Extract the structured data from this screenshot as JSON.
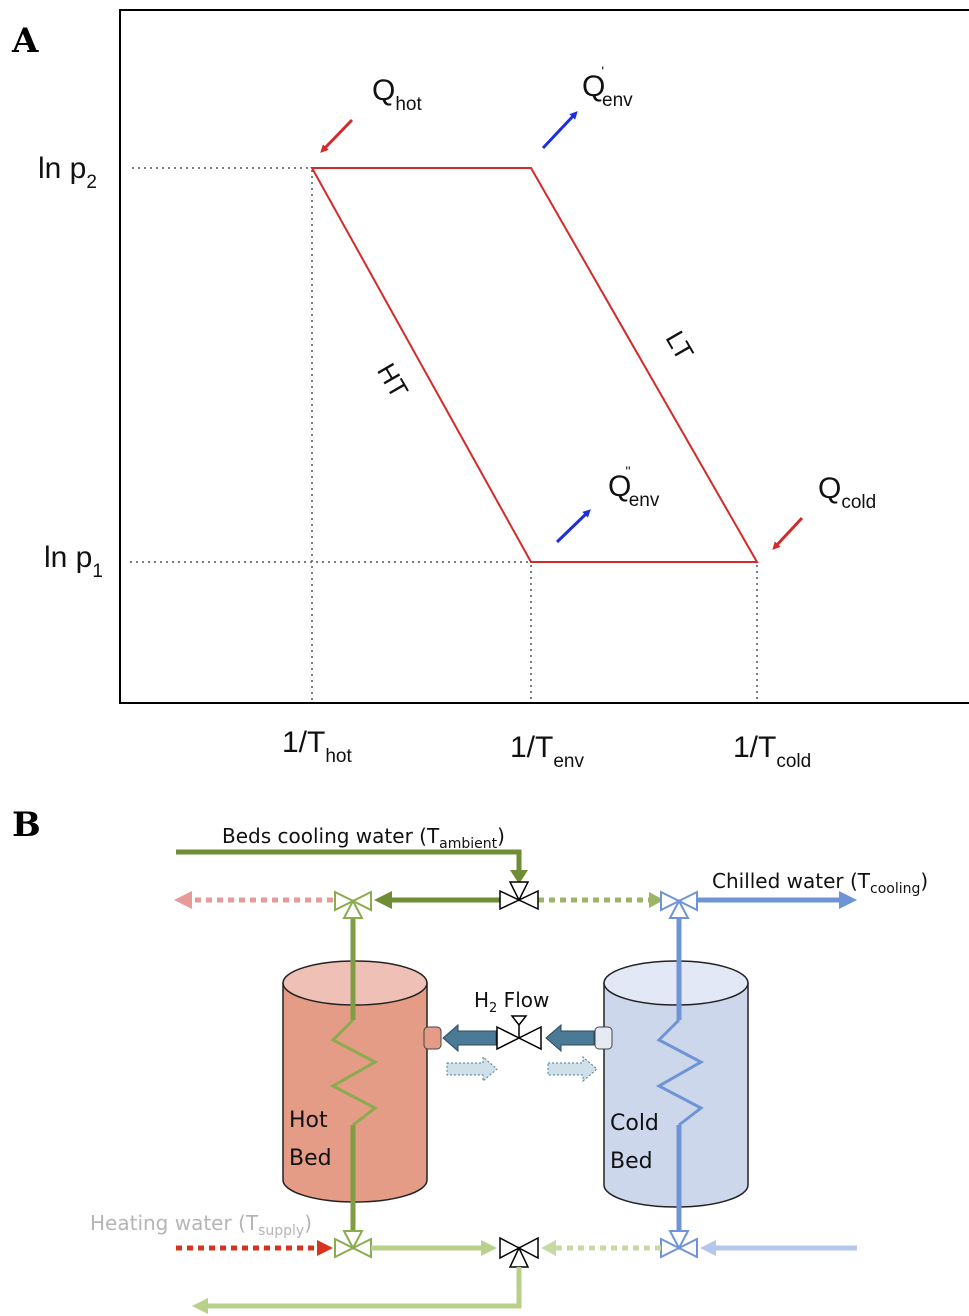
{
  "panel_a": {
    "panel_label": "A",
    "y_tick_p2": {
      "main": "ln p",
      "sub": "2"
    },
    "y_tick_p1": {
      "main": "ln p",
      "sub": "1"
    },
    "x_tick_hot": {
      "main": "1/T",
      "sub": "hot"
    },
    "x_tick_env": {
      "main": "1/T",
      "sub": "env"
    },
    "x_tick_cold": {
      "main": "1/T",
      "sub": "cold"
    },
    "q_hot": {
      "main": "Q",
      "sub": "hot"
    },
    "q_env_1": {
      "main": "Q",
      "prime": "'",
      "sub": "env"
    },
    "q_env_2": {
      "main": "Q",
      "prime": "''",
      "sub": "env"
    },
    "q_cold": {
      "main": "Q",
      "sub": "cold"
    },
    "ht_label": "HT",
    "lt_label": "LT",
    "colors": {
      "cycle": "#d42a2a",
      "heat_in": "#d42a2a",
      "heat_out": "#1f2fe0"
    }
  },
  "panel_b": {
    "panel_label": "B",
    "beds_cooling": {
      "main": "Beds cooling water (T",
      "sub": "ambient",
      "close": ")"
    },
    "chilled": {
      "main": "Chilled water (T",
      "sub": "cooling",
      "close": ")"
    },
    "heating": {
      "main": "Heating water (T",
      "sub": "supply",
      "close": ")"
    },
    "h2_flow": {
      "pre": "H",
      "sub": "2",
      "post": " Flow"
    },
    "hot_bed": {
      "line1": "Hot",
      "line2": "Bed"
    },
    "cold_bed": {
      "line1": "Cold",
      "line2": "Bed"
    },
    "colors": {
      "green_dark": "#6e8d35",
      "green_light": "#b9d08a",
      "blue": "#6f94d6",
      "blue_light": "#b4c6ec",
      "pink": "#e79a9a",
      "red_dotted": "#d8331f",
      "hot_bed": "#e49c86",
      "cold_bed": "#cdd7ec",
      "h2_arrow": "#4b7a96"
    }
  }
}
